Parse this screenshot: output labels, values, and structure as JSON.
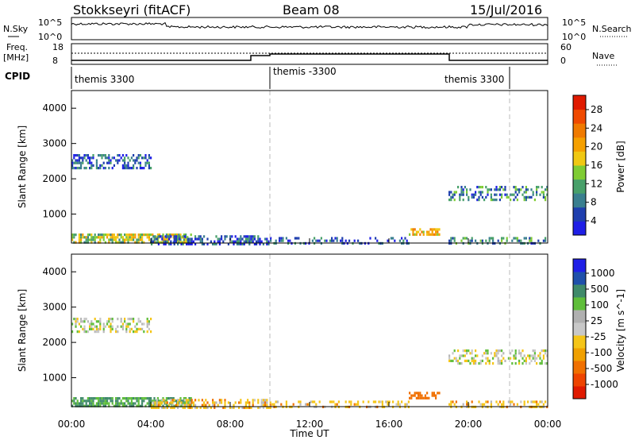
{
  "header": {
    "station": "Stokkseyri (fitACF)",
    "beam": "Beam 08",
    "date": "15/Jul/2016"
  },
  "status_panels": {
    "nsky_label": "N.Sky",
    "nsearch_label": "N.Search",
    "freq_label_1": "Freq.",
    "freq_label_2": "[MHz]",
    "nave_label": "Nave",
    "cpid_label": "CPID",
    "nsky_ticks_left": [
      "10^5",
      "10^0"
    ],
    "nsky_ticks_right": [
      "10^5",
      "10^0"
    ],
    "freq_ticks": [
      "18",
      "8"
    ],
    "nave_ticks": [
      "60",
      "0"
    ],
    "cpid_segments": [
      {
        "start_h": 0,
        "end_h": 10,
        "label": "themis 3300"
      },
      {
        "start_h": 10,
        "end_h": 22,
        "label": "themis -3300"
      },
      {
        "start_h": 22,
        "end_h": 24,
        "label": "themis 3300"
      }
    ]
  },
  "axes": {
    "ylabel": "Slant Range [km]",
    "xlabel": "Time UT",
    "x_ticks": [
      "00:00",
      "04:00",
      "08:00",
      "12:00",
      "16:00",
      "20:00",
      "00:00"
    ],
    "y_ticks": [
      "1000",
      "2000",
      "3000",
      "4000"
    ]
  },
  "colorbars": {
    "power": {
      "label": "Power [dB]",
      "ticks": [
        "4",
        "8",
        "12",
        "16",
        "20",
        "24",
        "28"
      ],
      "colors": [
        "#1f1fe6",
        "#1f3fae",
        "#3a7f8f",
        "#48a06a",
        "#7fcc33",
        "#f0c812",
        "#f5a000",
        "#f07a00",
        "#f04a00",
        "#e01a00"
      ]
    },
    "velocity": {
      "label": "Velocity [m s^-1]",
      "ticks": [
        "1000",
        "500",
        "100",
        "25",
        "-25",
        "-100",
        "-500",
        "-1000"
      ],
      "colors": [
        "#1f1fe6",
        "#1f50aa",
        "#3f8a6a",
        "#5fbe3a",
        "#b0b0b0",
        "#c8c8c8",
        "#f5c518",
        "#f0a000",
        "#f07000",
        "#ee4400",
        "#e01a00"
      ]
    }
  },
  "chart_data": [
    {
      "type": "heatmap",
      "title": "Power",
      "xlabel": "Time UT",
      "ylabel": "Slant Range [km]",
      "xlim_hours": [
        0,
        24
      ],
      "ylim_km": [
        180,
        4500
      ],
      "colorbar_range_db": [
        0,
        30
      ],
      "dashed_markers_h": [
        10,
        22
      ],
      "regions": [
        {
          "t0": 0,
          "t1": 6,
          "r0": 180,
          "r1": 450,
          "value": 14,
          "density": 0.7
        },
        {
          "t0": 0,
          "t1": 4,
          "r0": 2300,
          "r1": 2700,
          "value": 6,
          "density": 0.5
        },
        {
          "t0": 4,
          "t1": 10,
          "r0": 180,
          "r1": 400,
          "value": 5,
          "density": 0.5
        },
        {
          "t0": 10,
          "t1": 17,
          "r0": 180,
          "r1": 350,
          "value": 5,
          "density": 0.3
        },
        {
          "t0": 17,
          "t1": 18.5,
          "r0": 450,
          "r1": 600,
          "value": 18,
          "density": 0.6
        },
        {
          "t0": 19,
          "t1": 24,
          "r0": 1400,
          "r1": 1800,
          "value": 8,
          "density": 0.4
        },
        {
          "t0": 19,
          "t1": 24,
          "r0": 180,
          "r1": 350,
          "value": 8,
          "density": 0.4
        }
      ]
    },
    {
      "type": "heatmap",
      "title": "Velocity",
      "xlabel": "Time UT",
      "ylabel": "Slant Range [km]",
      "xlim_hours": [
        0,
        24
      ],
      "ylim_km": [
        180,
        4500
      ],
      "colorbar_range_ms": [
        -1000,
        1000
      ],
      "dashed_markers_h": [
        10,
        22
      ],
      "regions": [
        {
          "t0": 0,
          "t1": 6,
          "r0": 180,
          "r1": 450,
          "value": 100,
          "density": 0.7
        },
        {
          "t0": 0,
          "t1": 4,
          "r0": 2300,
          "r1": 2700,
          "value": 0,
          "density": 0.5
        },
        {
          "t0": 4,
          "t1": 10,
          "r0": 180,
          "r1": 400,
          "value": -60,
          "density": 0.5
        },
        {
          "t0": 10,
          "t1": 17,
          "r0": 180,
          "r1": 350,
          "value": -60,
          "density": 0.3
        },
        {
          "t0": 17,
          "t1": 18.5,
          "r0": 450,
          "r1": 600,
          "value": -300,
          "density": 0.6
        },
        {
          "t0": 19,
          "t1": 24,
          "r0": 1400,
          "r1": 1800,
          "value": 0,
          "density": 0.4
        },
        {
          "t0": 19,
          "t1": 24,
          "r0": 180,
          "r1": 350,
          "value": -60,
          "density": 0.4
        }
      ]
    }
  ]
}
